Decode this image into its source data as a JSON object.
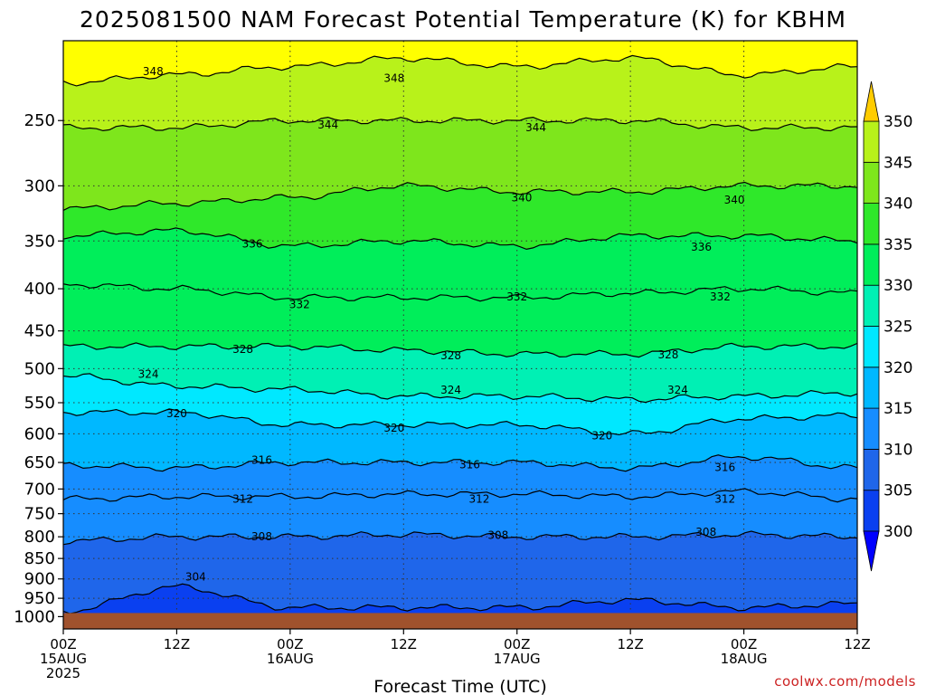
{
  "chart_data": {
    "type": "heatmap",
    "title": "2025081500 NAM Forecast Potential Temperature (K) for KBHM",
    "xlabel": "Forecast Time (UTC)",
    "ylabel": "",
    "credit": "coolwx.com/models",
    "x_ticks": [
      {
        "hour": 0,
        "lines": [
          "00Z",
          "15AUG",
          "2025"
        ]
      },
      {
        "hour": 12,
        "lines": [
          "12Z"
        ]
      },
      {
        "hour": 24,
        "lines": [
          "00Z",
          "16AUG"
        ]
      },
      {
        "hour": 36,
        "lines": [
          "12Z"
        ]
      },
      {
        "hour": 48,
        "lines": [
          "00Z",
          "17AUG"
        ]
      },
      {
        "hour": 60,
        "lines": [
          "12Z"
        ]
      },
      {
        "hour": 72,
        "lines": [
          "00Z",
          "18AUG"
        ]
      },
      {
        "hour": 84,
        "lines": [
          "12Z"
        ]
      }
    ],
    "xlim": [
      0,
      84
    ],
    "y_scale": "log",
    "ylim": [
      1035,
      200
    ],
    "y_ticks": [
      250,
      300,
      350,
      400,
      450,
      500,
      550,
      600,
      650,
      700,
      750,
      800,
      850,
      900,
      950,
      1000
    ],
    "grid": true,
    "surface_pressure": 1000,
    "colorbar": {
      "levels": [
        300,
        305,
        310,
        315,
        320,
        325,
        330,
        335,
        340,
        345,
        350
      ],
      "labels": [
        "300",
        "305",
        "310",
        "315",
        "320",
        "325",
        "330",
        "335",
        "340",
        "345",
        "350"
      ],
      "colors": [
        "#0a40f0",
        "#1f66ea",
        "#168dff",
        "#00b8ff",
        "#00e8ff",
        "#00f0b4",
        "#00ee5a",
        "#2fe82a",
        "#7ee61c",
        "#b8f21a",
        "#ffff00",
        "#ffcc00"
      ],
      "under_color": "#0000ff",
      "over_color": "#ffcc00"
    },
    "isentrope_pressures": {
      "hours": [
        0,
        12,
        24,
        36,
        48,
        60,
        72,
        84
      ],
      "levels": [
        {
          "theta": 304,
          "p": [
            985,
            920,
            975,
            975,
            975,
            955,
            975,
            965
          ]
        },
        {
          "theta": 308,
          "p": [
            810,
            800,
            800,
            795,
            800,
            800,
            795,
            800
          ]
        },
        {
          "theta": 312,
          "p": [
            720,
            715,
            715,
            710,
            710,
            715,
            705,
            720
          ]
        },
        {
          "theta": 316,
          "p": [
            655,
            660,
            650,
            650,
            650,
            660,
            640,
            660
          ]
        },
        {
          "theta": 320,
          "p": [
            565,
            565,
            585,
            585,
            585,
            600,
            575,
            570
          ]
        },
        {
          "theta": 324,
          "p": [
            510,
            525,
            530,
            540,
            540,
            545,
            540,
            535
          ]
        },
        {
          "theta": 328,
          "p": [
            470,
            470,
            470,
            475,
            480,
            480,
            470,
            470
          ]
        },
        {
          "theta": 332,
          "p": [
            395,
            400,
            410,
            410,
            410,
            405,
            400,
            405
          ]
        },
        {
          "theta": 336,
          "p": [
            345,
            340,
            355,
            350,
            355,
            345,
            345,
            350
          ]
        },
        {
          "theta": 340,
          "p": [
            320,
            315,
            310,
            300,
            305,
            305,
            300,
            300
          ]
        },
        {
          "theta": 344,
          "p": [
            255,
            255,
            250,
            250,
            250,
            250,
            255,
            255
          ]
        },
        {
          "theta": 348,
          "p": [
            225,
            220,
            215,
            210,
            215,
            210,
            220,
            215
          ]
        }
      ]
    },
    "contour_labels": [
      {
        "text": "348",
        "hour": 9.5,
        "p": 218
      },
      {
        "text": "348",
        "hour": 35,
        "p": 222
      },
      {
        "text": "344",
        "hour": 28,
        "p": 253
      },
      {
        "text": "344",
        "hour": 50,
        "p": 255
      },
      {
        "text": "340",
        "hour": 48.5,
        "p": 310
      },
      {
        "text": "340",
        "hour": 71,
        "p": 312
      },
      {
        "text": "336",
        "hour": 20,
        "p": 353
      },
      {
        "text": "336",
        "hour": 67.5,
        "p": 356
      },
      {
        "text": "332",
        "hour": 25,
        "p": 418
      },
      {
        "text": "332",
        "hour": 48,
        "p": 409
      },
      {
        "text": "332",
        "hour": 69.5,
        "p": 409
      },
      {
        "text": "328",
        "hour": 19,
        "p": 474
      },
      {
        "text": "328",
        "hour": 41,
        "p": 482
      },
      {
        "text": "328",
        "hour": 64,
        "p": 481
      },
      {
        "text": "324",
        "hour": 9,
        "p": 508
      },
      {
        "text": "324",
        "hour": 41,
        "p": 531
      },
      {
        "text": "324",
        "hour": 65,
        "p": 531
      },
      {
        "text": "320",
        "hour": 12,
        "p": 567
      },
      {
        "text": "320",
        "hour": 35,
        "p": 590
      },
      {
        "text": "320",
        "hour": 57,
        "p": 603
      },
      {
        "text": "316",
        "hour": 21,
        "p": 646
      },
      {
        "text": "316",
        "hour": 43,
        "p": 654
      },
      {
        "text": "316",
        "hour": 70,
        "p": 659
      },
      {
        "text": "312",
        "hour": 19,
        "p": 720
      },
      {
        "text": "312",
        "hour": 44,
        "p": 720
      },
      {
        "text": "312",
        "hour": 70,
        "p": 720
      },
      {
        "text": "308",
        "hour": 21,
        "p": 800
      },
      {
        "text": "308",
        "hour": 46,
        "p": 797
      },
      {
        "text": "308",
        "hour": 68,
        "p": 790
      },
      {
        "text": "304",
        "hour": 14,
        "p": 895
      }
    ]
  }
}
